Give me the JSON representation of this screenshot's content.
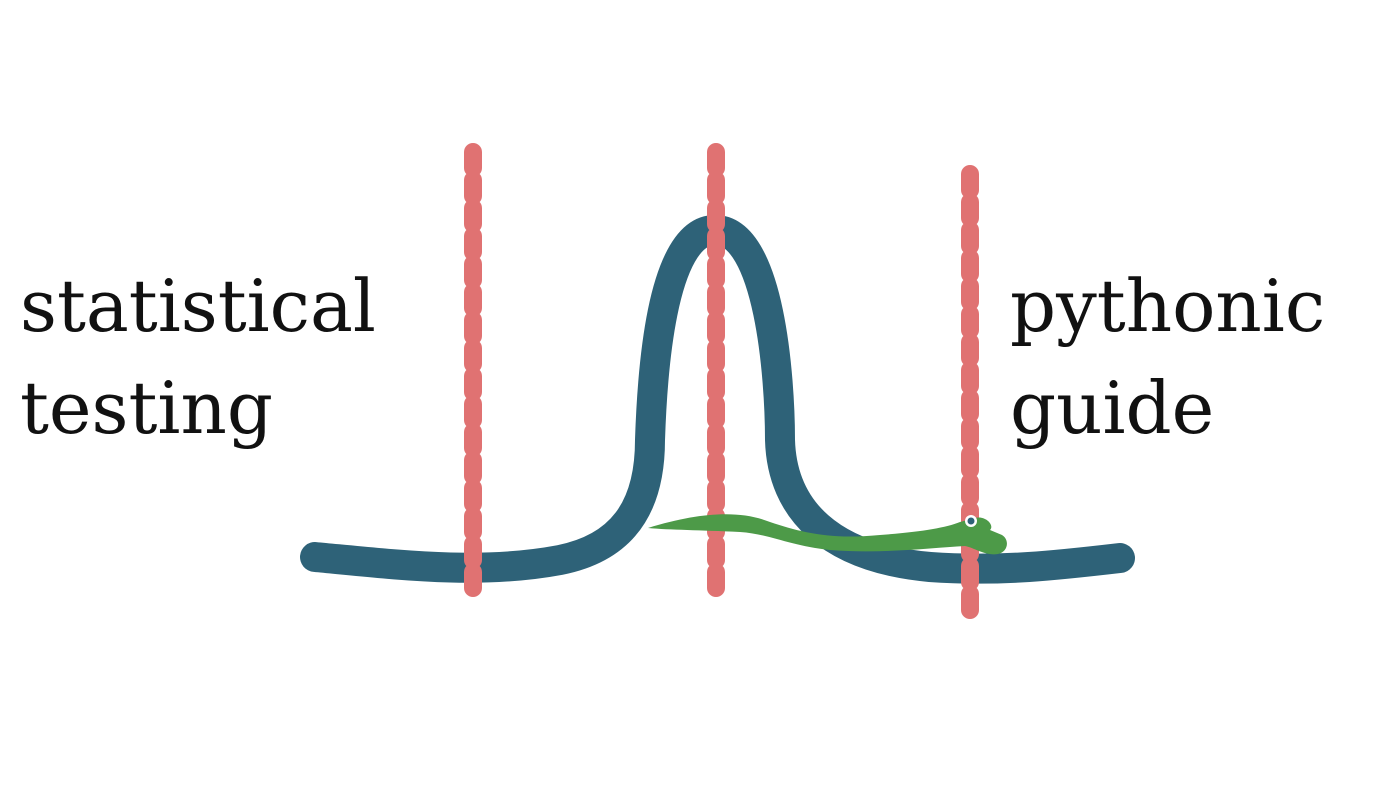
{
  "title_left": {
    "line1": "statistical",
    "line2": "testing"
  },
  "title_right": {
    "line1": "pythonic",
    "line2": "guide"
  },
  "colors": {
    "curve": "#2e6278",
    "dashed_lines": "#e07272",
    "snake": "#4d9a48",
    "text": "#111111"
  },
  "icons": [
    "bell-curve-icon",
    "snake-icon"
  ]
}
